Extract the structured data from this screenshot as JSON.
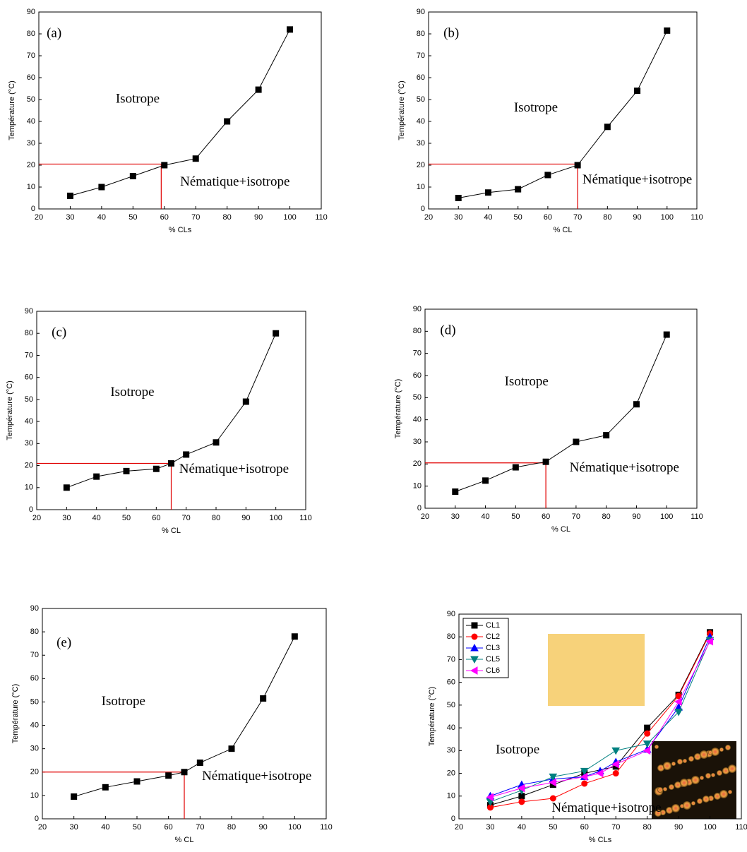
{
  "chart_data": [
    {
      "type": "line",
      "annotations": [
        "(a)",
        "Isotrope",
        "Nématique+isotrope"
      ],
      "xlabel": "% CLs",
      "ylabel": "Température (°C)",
      "series": [
        {
          "color": "#000000",
          "marker": "square",
          "x": [
            30,
            40,
            50,
            60,
            70,
            80,
            90,
            100
          ],
          "values": [
            6,
            10,
            15,
            20,
            23,
            40,
            54.5,
            82
          ]
        }
      ],
      "xlim": [
        20,
        110
      ],
      "xticks": [
        20,
        30,
        40,
        50,
        60,
        70,
        80,
        90,
        100,
        110
      ],
      "ylim": [
        0,
        90
      ],
      "yticks": [
        0,
        10,
        20,
        30,
        40,
        50,
        60,
        70,
        80,
        90
      ],
      "reference": {
        "x": 59,
        "y": 20.5,
        "color": "#e00000"
      }
    },
    {
      "type": "line",
      "annotations": [
        "(b)",
        "Isotrope",
        "Nématique+isotrope"
      ],
      "xlabel": "% CL",
      "ylabel": "Température (°C)",
      "series": [
        {
          "color": "#000000",
          "marker": "square",
          "x": [
            30,
            40,
            50,
            60,
            70,
            80,
            90,
            100
          ],
          "values": [
            5,
            7.5,
            9,
            15.5,
            20,
            37.5,
            54,
            81.5
          ]
        }
      ],
      "xlim": [
        20,
        110
      ],
      "xticks": [
        20,
        30,
        40,
        50,
        60,
        70,
        80,
        90,
        100,
        110
      ],
      "ylim": [
        0,
        90
      ],
      "yticks": [
        0,
        10,
        20,
        30,
        40,
        50,
        60,
        70,
        80,
        90
      ],
      "reference": {
        "x": 70,
        "y": 20.5,
        "color": "#e00000"
      }
    },
    {
      "type": "line",
      "annotations": [
        "(c)",
        "Isotrope",
        "Nématique+isotrope"
      ],
      "xlabel": "% CL",
      "ylabel": "Température (°C)",
      "series": [
        {
          "color": "#000000",
          "marker": "square",
          "x": [
            30,
            40,
            50,
            60,
            65,
            70,
            80,
            90,
            100
          ],
          "values": [
            10,
            15,
            17.5,
            18.5,
            21,
            25,
            30.5,
            49,
            80
          ]
        }
      ],
      "xlim": [
        20,
        110
      ],
      "xticks": [
        20,
        30,
        40,
        50,
        60,
        70,
        80,
        90,
        100,
        110
      ],
      "ylim": [
        0,
        90
      ],
      "yticks": [
        0,
        10,
        20,
        30,
        40,
        50,
        60,
        70,
        80,
        90
      ],
      "reference": {
        "x": 65,
        "y": 21,
        "color": "#e00000"
      }
    },
    {
      "type": "line",
      "annotations": [
        "(d)",
        "Isotrope",
        "Nématique+isotrope"
      ],
      "xlabel": "% CL",
      "ylabel": "Température (°C)",
      "series": [
        {
          "color": "#000000",
          "marker": "square",
          "x": [
            30,
            40,
            50,
            60,
            70,
            80,
            90,
            100
          ],
          "values": [
            7.5,
            12.5,
            18.5,
            21,
            30,
            33,
            47,
            78.5
          ]
        }
      ],
      "xlim": [
        20,
        110
      ],
      "xticks": [
        20,
        30,
        40,
        50,
        60,
        70,
        80,
        90,
        100,
        110
      ],
      "ylim": [
        0,
        90
      ],
      "yticks": [
        0,
        10,
        20,
        30,
        40,
        50,
        60,
        70,
        80,
        90
      ],
      "reference": {
        "x": 60,
        "y": 20.5,
        "color": "#e00000"
      }
    },
    {
      "type": "line",
      "annotations": [
        "(e)",
        "Isotrope",
        "Nématique+isotrope"
      ],
      "xlabel": "% CL",
      "ylabel": "Température (°C)",
      "series": [
        {
          "color": "#000000",
          "marker": "square",
          "x": [
            30,
            40,
            50,
            60,
            65,
            70,
            80,
            90,
            100
          ],
          "values": [
            9.5,
            13.5,
            16,
            18.5,
            20,
            24,
            30,
            51.5,
            78
          ]
        }
      ],
      "xlim": [
        20,
        110
      ],
      "xticks": [
        20,
        30,
        40,
        50,
        60,
        70,
        80,
        90,
        100,
        110
      ],
      "ylim": [
        0,
        90
      ],
      "yticks": [
        0,
        10,
        20,
        30,
        40,
        50,
        60,
        70,
        80,
        90
      ],
      "reference": {
        "x": 65,
        "y": 20,
        "color": "#e00000"
      }
    },
    {
      "type": "line",
      "annotations": [
        "Isotrope",
        "Nématique+isotrope"
      ],
      "xlabel": "% CLs",
      "ylabel": "Température (°C)",
      "legend": "upper left",
      "series": [
        {
          "name": "CL1",
          "color": "#000000",
          "marker": "square",
          "x": [
            30,
            40,
            50,
            60,
            70,
            80,
            90,
            100
          ],
          "values": [
            6,
            10,
            15,
            20,
            23,
            40,
            54.5,
            82
          ]
        },
        {
          "name": "CL2",
          "color": "#ff0000",
          "marker": "circle",
          "x": [
            30,
            40,
            50,
            60,
            70,
            80,
            90,
            100
          ],
          "values": [
            5,
            7.5,
            9,
            15.5,
            20,
            37.5,
            54,
            81.5
          ]
        },
        {
          "name": "CL3",
          "color": "#0000ff",
          "marker": "triangle-up",
          "x": [
            30,
            40,
            50,
            60,
            65,
            70,
            80,
            90,
            100
          ],
          "values": [
            10,
            15,
            17.5,
            18.5,
            21,
            25,
            30.5,
            49,
            80
          ]
        },
        {
          "name": "CL5",
          "color": "#008080",
          "marker": "triangle-down",
          "x": [
            30,
            40,
            50,
            60,
            70,
            80,
            90,
            100
          ],
          "values": [
            7.5,
            12.5,
            18.5,
            21,
            30,
            33,
            47,
            78.5
          ]
        },
        {
          "name": "CL6",
          "color": "#ff00ff",
          "marker": "triangle-left",
          "x": [
            30,
            40,
            50,
            60,
            65,
            70,
            80,
            90,
            100
          ],
          "values": [
            9.5,
            13.5,
            16,
            18.5,
            20,
            24,
            30,
            51.5,
            78
          ]
        }
      ],
      "xlim": [
        20,
        110
      ],
      "xticks": [
        20,
        30,
        40,
        50,
        60,
        70,
        80,
        90,
        100,
        110
      ],
      "ylim": [
        0,
        90
      ],
      "yticks": [
        0,
        10,
        20,
        30,
        40,
        50,
        60,
        70,
        80,
        90
      ]
    }
  ]
}
